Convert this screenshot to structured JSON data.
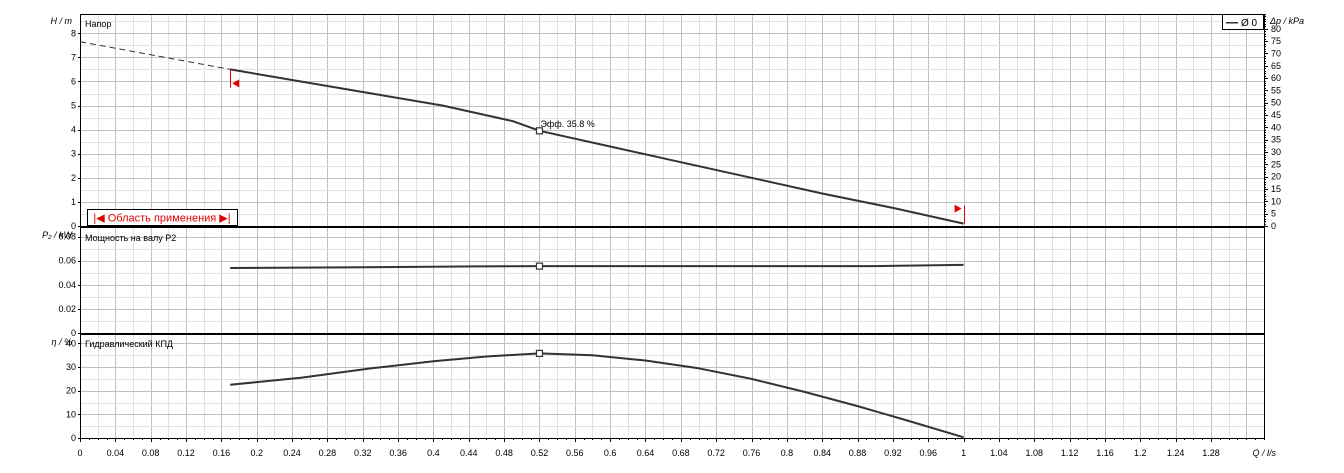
{
  "colors": {
    "curve": "#333333",
    "grid_major": "#c0c0c0",
    "grid_minor": "#e2e2e2",
    "frame": "#000000",
    "marker_red": "#e00000"
  },
  "chart_data": [
    {
      "type": "line",
      "panel": "head",
      "title": "Напор",
      "ylabel": "H / m",
      "ylabel_right": "Δp / kPa",
      "ylim": [
        0,
        8.8
      ],
      "yticks": [
        "0",
        "1",
        "2",
        "3",
        "4",
        "5",
        "6",
        "7",
        "8"
      ],
      "ylim_right": [
        0,
        86
      ],
      "yticks_right": [
        "0",
        "5",
        "10",
        "15",
        "20",
        "25",
        "30",
        "35",
        "40",
        "45",
        "50",
        "55",
        "60",
        "65",
        "70",
        "75",
        "80"
      ],
      "legend": [
        "Ø 0"
      ],
      "legend_position": "top-right",
      "series": [
        {
          "x": [
            0.17,
            0.25,
            0.33,
            0.41,
            0.49,
            0.52,
            0.6,
            0.68,
            0.76,
            0.84,
            0.92,
            1.0
          ],
          "y": [
            6.5,
            6.0,
            5.5,
            5.0,
            4.35,
            3.95,
            3.3,
            2.65,
            2.0,
            1.35,
            0.75,
            0.1
          ]
        }
      ],
      "extrapolation": {
        "x": [
          0.0,
          0.17
        ],
        "y": [
          7.65,
          6.5
        ]
      },
      "point": {
        "x": 0.52,
        "y": 3.95,
        "label": "Эфф.  35.8 %"
      },
      "range": {
        "label": "|◀ Область применения ▶|",
        "x_min": 0.17,
        "x_max": 1.0
      }
    },
    {
      "type": "line",
      "panel": "power",
      "title": "Мощность на валу P2",
      "ylabel": "P₂ / kW",
      "ylim": [
        0,
        0.088
      ],
      "yticks": [
        "0",
        "0.02",
        "0.04",
        "0.06",
        "0.08"
      ],
      "series": [
        {
          "x": [
            0.17,
            0.3,
            0.45,
            0.52,
            0.7,
            0.9,
            1.0
          ],
          "y": [
            0.054,
            0.0545,
            0.0553,
            0.0555,
            0.0555,
            0.0555,
            0.0565
          ]
        }
      ],
      "point": {
        "x": 0.52,
        "y": 0.0555
      }
    },
    {
      "type": "line",
      "panel": "efficiency",
      "title": "Гидравлический КПД",
      "ylabel": "η / %",
      "ylim": [
        0,
        44
      ],
      "yticks": [
        "0",
        "10",
        "20",
        "30",
        "40"
      ],
      "xlabel": "Q / l/s",
      "xlim": [
        0,
        1.34
      ],
      "xticks": [
        "0",
        "0.04",
        "0.08",
        "0.12",
        "0.16",
        "0.2",
        "0.24",
        "0.28",
        "0.32",
        "0.36",
        "0.4",
        "0.44",
        "0.48",
        "0.52",
        "0.56",
        "0.6",
        "0.64",
        "0.68",
        "0.72",
        "0.76",
        "0.8",
        "0.84",
        "0.88",
        "0.92",
        "0.96",
        "1",
        "1.04",
        "1.08",
        "1.12",
        "1.16",
        "1.2",
        "1.24",
        "1.28"
      ],
      "series": [
        {
          "x": [
            0.17,
            0.25,
            0.33,
            0.4,
            0.46,
            0.52,
            0.58,
            0.64,
            0.7,
            0.76,
            0.82,
            0.88,
            0.94,
            1.0
          ],
          "y": [
            22.5,
            25.5,
            29.5,
            32.5,
            34.5,
            35.8,
            35.0,
            32.8,
            29.5,
            25.0,
            19.5,
            13.5,
            7.0,
            0.3
          ]
        }
      ],
      "point": {
        "x": 0.52,
        "y": 35.8
      }
    }
  ]
}
